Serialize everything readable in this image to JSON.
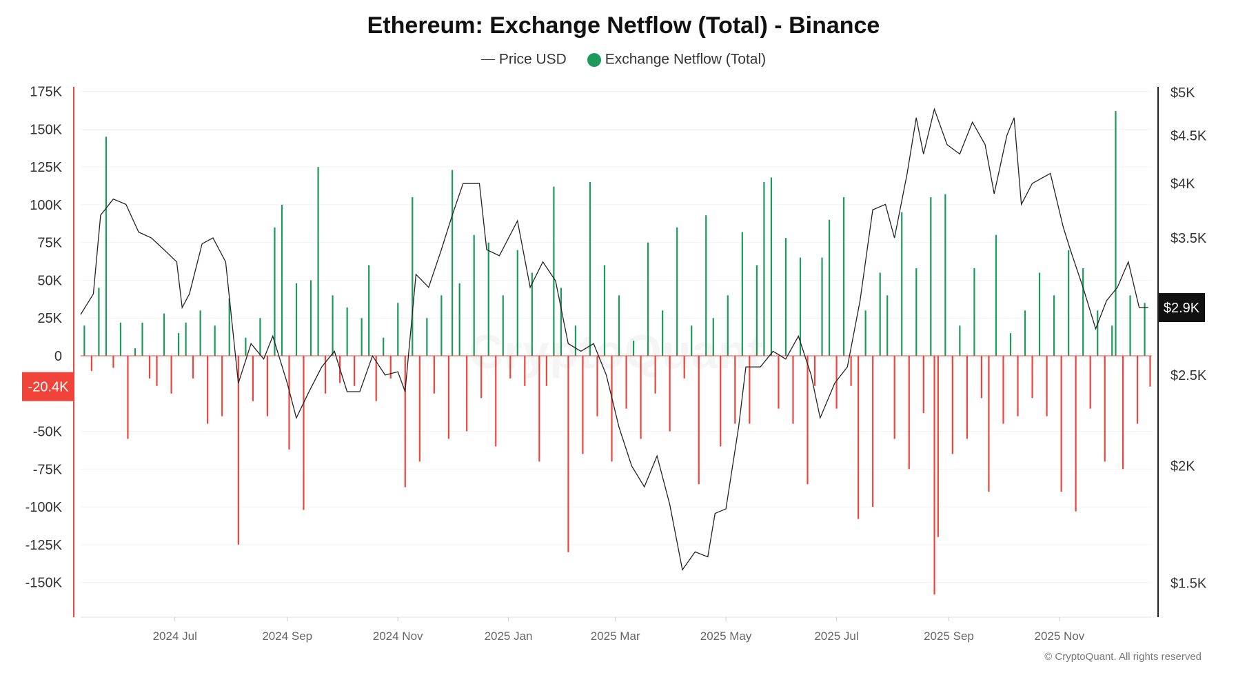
{
  "title": "Ethereum: Exchange Netflow (Total) - Binance",
  "watermark": "CryptoQuant",
  "copyright": "© CryptoQuant. All rights reserved",
  "colors": {
    "inflow": "#1a9b5c",
    "outflow": "#f0443a",
    "price": "#222222",
    "left_axis": "#f0443a",
    "right_axis": "#222222",
    "badge_left": "#f0443a",
    "badge_right": "#111111"
  },
  "chart_data": {
    "type": "bar+line",
    "title": "Ethereum: Exchange Netflow (Total) - Binance",
    "legend": [
      {
        "name": "Price USD",
        "marker": "line"
      },
      {
        "name": "Exchange Netflow (Total)",
        "marker": "dot"
      }
    ],
    "legend_placement": "top-center",
    "grid": true,
    "x_range": [
      "2024-05-10",
      "2025-12-22"
    ],
    "x_ticks": [
      [
        "2024-07-01",
        "2024 Jul"
      ],
      [
        "2024-09-01",
        "2024 Sep"
      ],
      [
        "2024-11-01",
        "2024 Nov"
      ],
      [
        "2025-01-01",
        "2025 Jan"
      ],
      [
        "2025-03-01",
        "2025 Mar"
      ],
      [
        "2025-05-01",
        "2025 May"
      ],
      [
        "2025-07-01",
        "2025 Jul"
      ],
      [
        "2025-09-01",
        "2025 Sep"
      ],
      [
        "2025-11-01",
        "2025 Nov"
      ]
    ],
    "left_axis": {
      "ylim": [
        -173000,
        178000
      ],
      "ticks": [
        [
          175000,
          "175K"
        ],
        [
          150000,
          "150K"
        ],
        [
          125000,
          "125K"
        ],
        [
          100000,
          "100K"
        ],
        [
          75000,
          "75K"
        ],
        [
          50000,
          "50K"
        ],
        [
          25000,
          "25K"
        ],
        [
          0,
          "0"
        ],
        [
          -50000,
          "-50K"
        ],
        [
          -75000,
          "-75K"
        ],
        [
          -100000,
          "-100K"
        ],
        [
          -125000,
          "-125K"
        ],
        [
          -150000,
          "-150K"
        ]
      ],
      "current_label": "-20.4K",
      "current_value": -20400
    },
    "right_axis": {
      "scale": "log",
      "ylim": [
        1380,
        5070
      ],
      "ticks": [
        [
          5000,
          "$5K"
        ],
        [
          4500,
          "$4.5K"
        ],
        [
          4000,
          "$4K"
        ],
        [
          3500,
          "$3.5K"
        ],
        [
          2500,
          "$2.5K"
        ],
        [
          2000,
          "$2K"
        ],
        [
          1500,
          "$1.5K"
        ]
      ],
      "current_label": "$2.9K",
      "current_value": 2950
    },
    "netflow": [
      [
        "2024-05-12",
        20000
      ],
      [
        "2024-05-16",
        -10000
      ],
      [
        "2024-05-20",
        45000
      ],
      [
        "2024-05-24",
        145000
      ],
      [
        "2024-05-28",
        -8000
      ],
      [
        "2024-06-01",
        22000
      ],
      [
        "2024-06-05",
        -55000
      ],
      [
        "2024-06-09",
        5000
      ],
      [
        "2024-06-13",
        22000
      ],
      [
        "2024-06-17",
        -15000
      ],
      [
        "2024-06-21",
        -20000
      ],
      [
        "2024-06-25",
        28000
      ],
      [
        "2024-06-29",
        -25000
      ],
      [
        "2024-07-03",
        15000
      ],
      [
        "2024-07-07",
        22000
      ],
      [
        "2024-07-11",
        -15000
      ],
      [
        "2024-07-15",
        30000
      ],
      [
        "2024-07-19",
        -45000
      ],
      [
        "2024-07-23",
        20000
      ],
      [
        "2024-07-27",
        -40000
      ],
      [
        "2024-07-31",
        38000
      ],
      [
        "2024-08-05",
        -125000
      ],
      [
        "2024-08-09",
        12000
      ],
      [
        "2024-08-13",
        -30000
      ],
      [
        "2024-08-17",
        25000
      ],
      [
        "2024-08-21",
        -40000
      ],
      [
        "2024-08-25",
        85000
      ],
      [
        "2024-08-29",
        100000
      ],
      [
        "2024-09-02",
        -62000
      ],
      [
        "2024-09-06",
        48000
      ],
      [
        "2024-09-10",
        -102000
      ],
      [
        "2024-09-14",
        50000
      ],
      [
        "2024-09-18",
        125000
      ],
      [
        "2024-09-22",
        -25000
      ],
      [
        "2024-09-26",
        40000
      ],
      [
        "2024-09-30",
        -18000
      ],
      [
        "2024-10-04",
        32000
      ],
      [
        "2024-10-08",
        -20000
      ],
      [
        "2024-10-12",
        25000
      ],
      [
        "2024-10-16",
        60000
      ],
      [
        "2024-10-20",
        -30000
      ],
      [
        "2024-10-24",
        12000
      ],
      [
        "2024-10-28",
        -15000
      ],
      [
        "2024-11-01",
        35000
      ],
      [
        "2024-11-05",
        -87000
      ],
      [
        "2024-11-09",
        105000
      ],
      [
        "2024-11-13",
        -70000
      ],
      [
        "2024-11-17",
        25000
      ],
      [
        "2024-11-21",
        -25000
      ],
      [
        "2024-11-25",
        40000
      ],
      [
        "2024-11-29",
        -55000
      ],
      [
        "2024-12-01",
        123000
      ],
      [
        "2024-12-05",
        48000
      ],
      [
        "2024-12-09",
        -50000
      ],
      [
        "2024-12-13",
        80000
      ],
      [
        "2024-12-17",
        -28000
      ],
      [
        "2024-12-21",
        75000
      ],
      [
        "2024-12-25",
        -60000
      ],
      [
        "2024-12-29",
        40000
      ],
      [
        "2025-01-02",
        -15000
      ],
      [
        "2025-01-06",
        70000
      ],
      [
        "2025-01-10",
        -20000
      ],
      [
        "2025-01-14",
        55000
      ],
      [
        "2025-01-18",
        -70000
      ],
      [
        "2025-01-22",
        -20000
      ],
      [
        "2025-01-26",
        112000
      ],
      [
        "2025-01-30",
        45000
      ],
      [
        "2025-02-03",
        -130000
      ],
      [
        "2025-02-07",
        20000
      ],
      [
        "2025-02-11",
        -65000
      ],
      [
        "2025-02-15",
        115000
      ],
      [
        "2025-02-19",
        -40000
      ],
      [
        "2025-02-23",
        60000
      ],
      [
        "2025-02-27",
        -70000
      ],
      [
        "2025-03-03",
        40000
      ],
      [
        "2025-03-07",
        -35000
      ],
      [
        "2025-03-11",
        10000
      ],
      [
        "2025-03-15",
        -55000
      ],
      [
        "2025-03-19",
        75000
      ],
      [
        "2025-03-23",
        -25000
      ],
      [
        "2025-03-27",
        30000
      ],
      [
        "2025-03-31",
        -50000
      ],
      [
        "2025-04-04",
        85000
      ],
      [
        "2025-04-08",
        -15000
      ],
      [
        "2025-04-12",
        20000
      ],
      [
        "2025-04-16",
        -85000
      ],
      [
        "2025-04-20",
        93000
      ],
      [
        "2025-04-24",
        25000
      ],
      [
        "2025-04-28",
        -60000
      ],
      [
        "2025-05-02",
        40000
      ],
      [
        "2025-05-06",
        -45000
      ],
      [
        "2025-05-10",
        82000
      ],
      [
        "2025-05-14",
        -45000
      ],
      [
        "2025-05-18",
        60000
      ],
      [
        "2025-05-22",
        115000
      ],
      [
        "2025-05-26",
        118000
      ],
      [
        "2025-05-30",
        -35000
      ],
      [
        "2025-06-03",
        78000
      ],
      [
        "2025-06-07",
        -45000
      ],
      [
        "2025-06-11",
        65000
      ],
      [
        "2025-06-15",
        -85000
      ],
      [
        "2025-06-19",
        -20000
      ],
      [
        "2025-06-23",
        65000
      ],
      [
        "2025-06-27",
        90000
      ],
      [
        "2025-07-01",
        -35000
      ],
      [
        "2025-07-05",
        105000
      ],
      [
        "2025-07-09",
        -20000
      ],
      [
        "2025-07-13",
        -108000
      ],
      [
        "2025-07-17",
        30000
      ],
      [
        "2025-07-21",
        -100000
      ],
      [
        "2025-07-25",
        55000
      ],
      [
        "2025-07-29",
        40000
      ],
      [
        "2025-08-02",
        -55000
      ],
      [
        "2025-08-06",
        95000
      ],
      [
        "2025-08-10",
        -75000
      ],
      [
        "2025-08-14",
        58000
      ],
      [
        "2025-08-18",
        -38000
      ],
      [
        "2025-08-22",
        105000
      ],
      [
        "2025-08-24",
        -158000
      ],
      [
        "2025-08-26",
        -120000
      ],
      [
        "2025-08-30",
        107000
      ],
      [
        "2025-09-03",
        -65000
      ],
      [
        "2025-09-07",
        20000
      ],
      [
        "2025-09-11",
        -55000
      ],
      [
        "2025-09-15",
        58000
      ],
      [
        "2025-09-19",
        -28000
      ],
      [
        "2025-09-23",
        -90000
      ],
      [
        "2025-09-27",
        80000
      ],
      [
        "2025-10-01",
        -45000
      ],
      [
        "2025-10-05",
        15000
      ],
      [
        "2025-10-09",
        -40000
      ],
      [
        "2025-10-13",
        30000
      ],
      [
        "2025-10-17",
        -28000
      ],
      [
        "2025-10-21",
        55000
      ],
      [
        "2025-10-25",
        -40000
      ],
      [
        "2025-10-29",
        40000
      ],
      [
        "2025-11-02",
        -90000
      ],
      [
        "2025-11-06",
        70000
      ],
      [
        "2025-11-10",
        -103000
      ],
      [
        "2025-11-14",
        58000
      ],
      [
        "2025-11-18",
        -35000
      ],
      [
        "2025-11-22",
        30000
      ],
      [
        "2025-11-26",
        -70000
      ],
      [
        "2025-11-30",
        20000
      ],
      [
        "2025-12-02",
        162000
      ],
      [
        "2025-12-06",
        -75000
      ],
      [
        "2025-12-10",
        40000
      ],
      [
        "2025-12-14",
        -45000
      ],
      [
        "2025-12-18",
        35000
      ],
      [
        "2025-12-21",
        -20400
      ]
    ],
    "price": [
      [
        "2024-05-10",
        2900
      ],
      [
        "2024-05-17",
        3050
      ],
      [
        "2024-05-21",
        3700
      ],
      [
        "2024-05-28",
        3850
      ],
      [
        "2024-06-04",
        3800
      ],
      [
        "2024-06-11",
        3550
      ],
      [
        "2024-06-18",
        3500
      ],
      [
        "2024-06-25",
        3400
      ],
      [
        "2024-07-02",
        3300
      ],
      [
        "2024-07-05",
        2950
      ],
      [
        "2024-07-09",
        3050
      ],
      [
        "2024-07-16",
        3450
      ],
      [
        "2024-07-22",
        3500
      ],
      [
        "2024-07-29",
        3300
      ],
      [
        "2024-08-05",
        2450
      ],
      [
        "2024-08-12",
        2700
      ],
      [
        "2024-08-19",
        2600
      ],
      [
        "2024-08-24",
        2750
      ],
      [
        "2024-09-01",
        2450
      ],
      [
        "2024-09-06",
        2250
      ],
      [
        "2024-09-13",
        2400
      ],
      [
        "2024-09-20",
        2550
      ],
      [
        "2024-09-27",
        2650
      ],
      [
        "2024-10-04",
        2400
      ],
      [
        "2024-10-11",
        2400
      ],
      [
        "2024-10-18",
        2620
      ],
      [
        "2024-10-25",
        2500
      ],
      [
        "2024-11-01",
        2520
      ],
      [
        "2024-11-05",
        2400
      ],
      [
        "2024-11-11",
        3200
      ],
      [
        "2024-11-18",
        3100
      ],
      [
        "2024-11-25",
        3400
      ],
      [
        "2024-12-01",
        3700
      ],
      [
        "2024-12-07",
        4000
      ],
      [
        "2024-12-16",
        4000
      ],
      [
        "2024-12-20",
        3400
      ],
      [
        "2024-12-27",
        3350
      ],
      [
        "2025-01-06",
        3650
      ],
      [
        "2025-01-13",
        3100
      ],
      [
        "2025-01-20",
        3300
      ],
      [
        "2025-01-27",
        3150
      ],
      [
        "2025-02-03",
        2700
      ],
      [
        "2025-02-10",
        2650
      ],
      [
        "2025-02-17",
        2700
      ],
      [
        "2025-02-24",
        2500
      ],
      [
        "2025-03-03",
        2200
      ],
      [
        "2025-03-10",
        2000
      ],
      [
        "2025-03-17",
        1900
      ],
      [
        "2025-03-24",
        2050
      ],
      [
        "2025-03-31",
        1820
      ],
      [
        "2025-04-07",
        1550
      ],
      [
        "2025-04-14",
        1620
      ],
      [
        "2025-04-21",
        1600
      ],
      [
        "2025-04-25",
        1780
      ],
      [
        "2025-05-01",
        1800
      ],
      [
        "2025-05-08",
        2200
      ],
      [
        "2025-05-12",
        2550
      ],
      [
        "2025-05-20",
        2550
      ],
      [
        "2025-05-27",
        2650
      ],
      [
        "2025-06-03",
        2600
      ],
      [
        "2025-06-10",
        2750
      ],
      [
        "2025-06-17",
        2500
      ],
      [
        "2025-06-22",
        2250
      ],
      [
        "2025-06-30",
        2450
      ],
      [
        "2025-07-07",
        2550
      ],
      [
        "2025-07-14",
        3000
      ],
      [
        "2025-07-21",
        3750
      ],
      [
        "2025-07-28",
        3800
      ],
      [
        "2025-08-02",
        3500
      ],
      [
        "2025-08-09",
        4100
      ],
      [
        "2025-08-14",
        4700
      ],
      [
        "2025-08-18",
        4300
      ],
      [
        "2025-08-24",
        4800
      ],
      [
        "2025-08-31",
        4400
      ],
      [
        "2025-09-07",
        4300
      ],
      [
        "2025-09-14",
        4650
      ],
      [
        "2025-09-21",
        4400
      ],
      [
        "2025-09-26",
        3900
      ],
      [
        "2025-10-03",
        4500
      ],
      [
        "2025-10-07",
        4700
      ],
      [
        "2025-10-11",
        3800
      ],
      [
        "2025-10-17",
        4000
      ],
      [
        "2025-10-27",
        4100
      ],
      [
        "2025-11-03",
        3600
      ],
      [
        "2025-11-07",
        3400
      ],
      [
        "2025-11-14",
        3100
      ],
      [
        "2025-11-21",
        2800
      ],
      [
        "2025-11-27",
        3000
      ],
      [
        "2025-12-03",
        3100
      ],
      [
        "2025-12-09",
        3300
      ],
      [
        "2025-12-15",
        2950
      ],
      [
        "2025-12-20",
        2950
      ]
    ]
  }
}
